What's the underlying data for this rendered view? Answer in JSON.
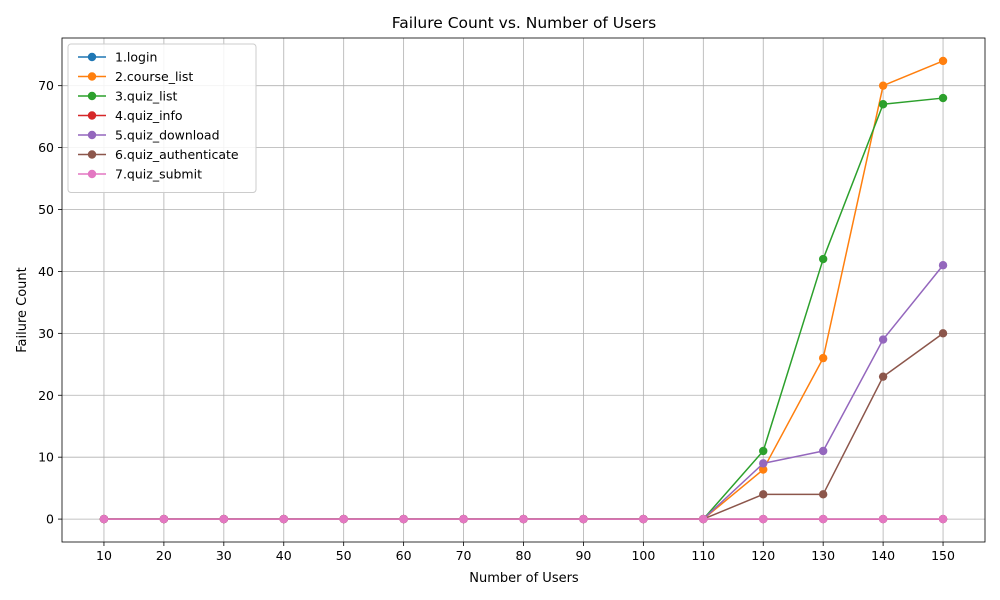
{
  "chart_data": {
    "type": "line",
    "title": "Failure Count vs. Number of Users",
    "xlabel": "Number of Users",
    "ylabel": "Failure Count",
    "x": [
      10,
      20,
      30,
      40,
      50,
      60,
      70,
      80,
      90,
      100,
      110,
      120,
      130,
      140,
      150
    ],
    "x_ticks": [
      "10",
      "20",
      "30",
      "40",
      "50",
      "60",
      "70",
      "80",
      "90",
      "100",
      "110",
      "120",
      "130",
      "140",
      "150"
    ],
    "y_ticks": [
      "0",
      "10",
      "20",
      "30",
      "40",
      "50",
      "60",
      "70"
    ],
    "xlim": [
      3.0,
      157.0
    ],
    "ylim": [
      -3.7,
      77.7
    ],
    "grid": true,
    "legend_position": "top-left",
    "series": [
      {
        "name": "1.login",
        "color": "#1f77b4",
        "values": [
          0,
          0,
          0,
          0,
          0,
          0,
          0,
          0,
          0,
          0,
          0,
          0,
          0,
          0,
          0
        ]
      },
      {
        "name": "2.course_list",
        "color": "#ff7f0e",
        "values": [
          0,
          0,
          0,
          0,
          0,
          0,
          0,
          0,
          0,
          0,
          0,
          8,
          26,
          70,
          74
        ]
      },
      {
        "name": "3.quiz_list",
        "color": "#2ca02c",
        "values": [
          0,
          0,
          0,
          0,
          0,
          0,
          0,
          0,
          0,
          0,
          0,
          11,
          42,
          67,
          68
        ]
      },
      {
        "name": "4.quiz_info",
        "color": "#d62728",
        "values": [
          0,
          0,
          0,
          0,
          0,
          0,
          0,
          0,
          0,
          0,
          0,
          0,
          0,
          0,
          0
        ]
      },
      {
        "name": "5.quiz_download",
        "color": "#9467bd",
        "values": [
          0,
          0,
          0,
          0,
          0,
          0,
          0,
          0,
          0,
          0,
          0,
          9,
          11,
          29,
          41
        ]
      },
      {
        "name": "6.quiz_authenticate",
        "color": "#8c564b",
        "values": [
          0,
          0,
          0,
          0,
          0,
          0,
          0,
          0,
          0,
          0,
          0,
          4,
          4,
          23,
          30
        ]
      },
      {
        "name": "7.quiz_submit",
        "color": "#e377c2",
        "values": [
          0,
          0,
          0,
          0,
          0,
          0,
          0,
          0,
          0,
          0,
          0,
          0,
          0,
          0,
          0
        ]
      }
    ]
  }
}
